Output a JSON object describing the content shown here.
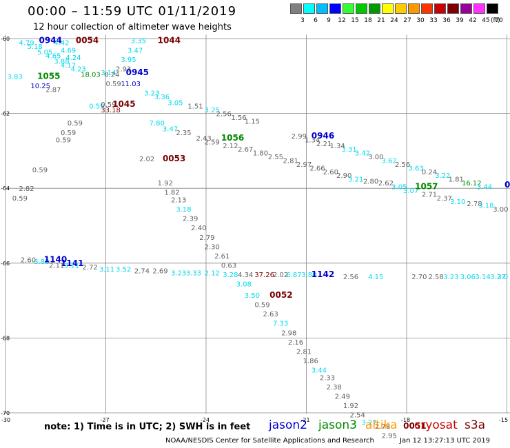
{
  "title": "00:00 – 11:59 UTC 01/11/2019",
  "subtitle": "12 hour collection of altimeter wave heights",
  "scale": {
    "labels": [
      "3",
      "6",
      "9",
      "12",
      "15",
      "18",
      "21",
      "24",
      "27",
      "30",
      "33",
      "36",
      "39",
      "42",
      "45",
      "70"
    ],
    "colors": [
      "#808080",
      "#00ffff",
      "#00bfff",
      "#0000ff",
      "#33ff33",
      "#00c800",
      "#009900",
      "#ffff00",
      "#ffcc00",
      "#ff9900",
      "#ff3300",
      "#cc0000",
      "#800000",
      "#990099",
      "#ff33ff",
      "#000000"
    ],
    "unit": "(ft)"
  },
  "axes": {
    "lat_labels": [
      "-60",
      "-62",
      "-64",
      "-66",
      "-68",
      "-70"
    ],
    "lon_labels": [
      "-30",
      "-27",
      "-24",
      "-21",
      "-18",
      "-15"
    ]
  },
  "colors": {
    "grey": "#606060",
    "cyan": "#00d8ee",
    "blue": "#0000d0",
    "green": "#008800",
    "darkred": "#7a0000"
  },
  "observations": [
    {
      "t": "4.79",
      "c": "cyan",
      "lat": -60.1,
      "lon": -29.6
    },
    {
      "t": "5.18",
      "c": "cyan",
      "lat": -60.2,
      "lon": -29.35
    },
    {
      "t": "0944",
      "c": "blue",
      "lat": -60.05,
      "lon": -29.0,
      "b": 1
    },
    {
      "t": "5.05",
      "c": "cyan",
      "lat": -60.35,
      "lon": -29.05
    },
    {
      "t": "4.42",
      "c": "cyan",
      "lat": -60.1,
      "lon": -28.55
    },
    {
      "t": "4.65",
      "c": "cyan",
      "lat": -60.45,
      "lon": -28.8
    },
    {
      "t": "4.69",
      "c": "cyan",
      "lat": -60.3,
      "lon": -28.35
    },
    {
      "t": "3.88",
      "c": "cyan",
      "lat": -60.6,
      "lon": -28.55
    },
    {
      "t": "4.24",
      "c": "cyan",
      "lat": -60.5,
      "lon": -28.2
    },
    {
      "t": "4.17",
      "c": "cyan",
      "lat": -60.7,
      "lon": -28.35
    },
    {
      "t": "4.23",
      "c": "cyan",
      "lat": -60.8,
      "lon": -28.05
    },
    {
      "t": "0054",
      "c": "darkred",
      "lat": -60.05,
      "lon": -27.9,
      "b": 1
    },
    {
      "t": "3.35",
      "c": "cyan",
      "lat": -60.05,
      "lon": -26.25
    },
    {
      "t": "1044",
      "c": "darkred",
      "lat": -60.05,
      "lon": -25.45,
      "b": 1
    },
    {
      "t": "3.47",
      "c": "cyan",
      "lat": -60.3,
      "lon": -26.35
    },
    {
      "t": "3.95",
      "c": "cyan",
      "lat": -60.55,
      "lon": -26.55
    },
    {
      "t": "2.93",
      "c": "grey",
      "lat": -60.8,
      "lon": -26.7
    },
    {
      "t": "3.83",
      "c": "cyan",
      "lat": -61.0,
      "lon": -29.95
    },
    {
      "t": "1055",
      "c": "green",
      "lat": -61.0,
      "lon": -29.05,
      "b": 1
    },
    {
      "t": "18.03",
      "c": "green",
      "lat": -60.95,
      "lon": -27.75
    },
    {
      "t": "3.14",
      "c": "cyan",
      "lat": -60.9,
      "lon": -27.15
    },
    {
      "t": "0945",
      "c": "blue",
      "lat": -60.9,
      "lon": -26.4,
      "b": 1
    },
    {
      "t": "0.24",
      "c": "grey",
      "lat": -60.95,
      "lon": -27.05
    },
    {
      "t": "10.25",
      "c": "blue",
      "lat": -61.25,
      "lon": -29.25
    },
    {
      "t": "2.87",
      "c": "grey",
      "lat": -61.35,
      "lon": -28.8
    },
    {
      "t": "0.59",
      "c": "grey",
      "lat": -61.2,
      "lon": -27.0
    },
    {
      "t": "11.03",
      "c": "blue",
      "lat": -61.2,
      "lon": -26.55
    },
    {
      "t": "3.23",
      "c": "cyan",
      "lat": -61.45,
      "lon": -25.85
    },
    {
      "t": "3.36",
      "c": "cyan",
      "lat": -61.55,
      "lon": -25.55
    },
    {
      "t": "3.05",
      "c": "cyan",
      "lat": -61.7,
      "lon": -25.15
    },
    {
      "t": "1.51",
      "c": "grey",
      "lat": -61.8,
      "lon": -24.55
    },
    {
      "t": "3.25",
      "c": "cyan",
      "lat": -61.9,
      "lon": -24.05
    },
    {
      "t": "2.56",
      "c": "grey",
      "lat": -62.0,
      "lon": -23.7
    },
    {
      "t": "1.56",
      "c": "grey",
      "lat": -62.1,
      "lon": -23.25
    },
    {
      "t": "1.15",
      "c": "grey",
      "lat": -62.2,
      "lon": -22.85
    },
    {
      "t": "0.59",
      "c": "cyan",
      "lat": -61.8,
      "lon": -27.5
    },
    {
      "t": "0.59",
      "c": "grey",
      "lat": -61.75,
      "lon": -27.15
    },
    {
      "t": "1045",
      "c": "darkred",
      "lat": -61.75,
      "lon": -26.8,
      "b": 1
    },
    {
      "t": "33.18",
      "c": "darkred",
      "lat": -61.9,
      "lon": -27.15
    },
    {
      "t": "0.59",
      "c": "grey",
      "lat": -62.25,
      "lon": -28.15
    },
    {
      "t": "0.59",
      "c": "grey",
      "lat": -62.5,
      "lon": -28.35
    },
    {
      "t": "0.59",
      "c": "grey",
      "lat": -62.7,
      "lon": -28.5
    },
    {
      "t": "7.80",
      "c": "cyan",
      "lat": -62.25,
      "lon": -25.7
    },
    {
      "t": "3.47",
      "c": "cyan",
      "lat": -62.4,
      "lon": -25.3
    },
    {
      "t": "2.35",
      "c": "grey",
      "lat": -62.5,
      "lon": -24.9
    },
    {
      "t": "2.43",
      "c": "grey",
      "lat": -62.65,
      "lon": -24.3
    },
    {
      "t": "2.59",
      "c": "grey",
      "lat": -62.75,
      "lon": -24.05
    },
    {
      "t": "1056",
      "c": "green",
      "lat": -62.65,
      "lon": -23.55,
      "b": 1
    },
    {
      "t": "2.12",
      "c": "grey",
      "lat": -62.85,
      "lon": -23.5
    },
    {
      "t": "2.67",
      "c": "grey",
      "lat": -62.95,
      "lon": -23.05
    },
    {
      "t": "1.80",
      "c": "grey",
      "lat": -63.05,
      "lon": -22.6
    },
    {
      "t": "2.55",
      "c": "grey",
      "lat": -63.15,
      "lon": -22.15
    },
    {
      "t": "2.81",
      "c": "grey",
      "lat": -63.25,
      "lon": -21.7
    },
    {
      "t": "2.97",
      "c": "grey",
      "lat": -63.35,
      "lon": -21.3
    },
    {
      "t": "2.66",
      "c": "grey",
      "lat": -63.45,
      "lon": -20.9
    },
    {
      "t": "2.60",
      "c": "grey",
      "lat": -63.55,
      "lon": -20.5
    },
    {
      "t": "2.90",
      "c": "grey",
      "lat": -63.65,
      "lon": -20.1
    },
    {
      "t": "3.21",
      "c": "cyan",
      "lat": -63.75,
      "lon": -19.75
    },
    {
      "t": "2.80",
      "c": "grey",
      "lat": -63.8,
      "lon": -19.3
    },
    {
      "t": "2.62",
      "c": "grey",
      "lat": -63.85,
      "lon": -18.85
    },
    {
      "t": "3.05",
      "c": "cyan",
      "lat": -63.95,
      "lon": -18.45
    },
    {
      "t": "3.07",
      "c": "cyan",
      "lat": -64.05,
      "lon": -18.1
    },
    {
      "t": "1057",
      "c": "green",
      "lat": -63.95,
      "lon": -17.75,
      "b": 1
    },
    {
      "t": "2.71",
      "c": "grey",
      "lat": -64.15,
      "lon": -17.55
    },
    {
      "t": "2.37",
      "c": "grey",
      "lat": -64.25,
      "lon": -17.1
    },
    {
      "t": "3.10",
      "c": "cyan",
      "lat": -64.35,
      "lon": -16.7
    },
    {
      "t": "2.78",
      "c": "grey",
      "lat": -64.4,
      "lon": -16.2
    },
    {
      "t": "3.18",
      "c": "cyan",
      "lat": -64.45,
      "lon": -15.85
    },
    {
      "t": "3.00",
      "c": "grey",
      "lat": -64.55,
      "lon": -15.3
    },
    {
      "t": "2.99",
      "c": "grey",
      "lat": -62.6,
      "lon": -21.45
    },
    {
      "t": "0946",
      "c": "blue",
      "lat": -62.6,
      "lon": -20.85,
      "b": 1
    },
    {
      "t": "1.34",
      "c": "grey",
      "lat": -62.7,
      "lon": -21.05
    },
    {
      "t": "2.21",
      "c": "grey",
      "lat": -62.8,
      "lon": -20.7
    },
    {
      "t": "1.34",
      "c": "grey",
      "lat": -62.85,
      "lon": -20.3
    },
    {
      "t": "3.31",
      "c": "cyan",
      "lat": -62.95,
      "lon": -19.95
    },
    {
      "t": "3.42",
      "c": "cyan",
      "lat": -63.05,
      "lon": -19.55
    },
    {
      "t": "3.00",
      "c": "grey",
      "lat": -63.15,
      "lon": -19.15
    },
    {
      "t": "3.62",
      "c": "cyan",
      "lat": -63.25,
      "lon": -18.75
    },
    {
      "t": "2.56",
      "c": "grey",
      "lat": -63.35,
      "lon": -18.35
    },
    {
      "t": "3.63",
      "c": "cyan",
      "lat": -63.45,
      "lon": -17.95
    },
    {
      "t": "0.24",
      "c": "grey",
      "lat": -63.55,
      "lon": -17.55
    },
    {
      "t": "3.22",
      "c": "cyan",
      "lat": -63.65,
      "lon": -17.15
    },
    {
      "t": "1.81",
      "c": "grey",
      "lat": -63.75,
      "lon": -16.75
    },
    {
      "t": "16.12",
      "c": "green",
      "lat": -63.85,
      "lon": -16.35
    },
    {
      "t": "3.44",
      "c": "cyan",
      "lat": -63.95,
      "lon": -15.9
    },
    {
      "t": "0",
      "c": "blue",
      "lat": -63.9,
      "lon": -15.05,
      "b": 1
    },
    {
      "t": "2.02",
      "c": "grey",
      "lat": -63.2,
      "lon": -26.0
    },
    {
      "t": "0053",
      "c": "darkred",
      "lat": -63.2,
      "lon": -25.3,
      "b": 1
    },
    {
      "t": "0.59",
      "c": "grey",
      "lat": -63.5,
      "lon": -29.2
    },
    {
      "t": "1.92",
      "c": "grey",
      "lat": -63.85,
      "lon": -25.45
    },
    {
      "t": "1.82",
      "c": "grey",
      "lat": -64.1,
      "lon": -25.25
    },
    {
      "t": "2.13",
      "c": "grey",
      "lat": -64.3,
      "lon": -25.05
    },
    {
      "t": "3.18",
      "c": "cyan",
      "lat": -64.55,
      "lon": -24.9
    },
    {
      "t": "2.39",
      "c": "grey",
      "lat": -64.8,
      "lon": -24.7
    },
    {
      "t": "2.40",
      "c": "grey",
      "lat": -65.05,
      "lon": -24.45
    },
    {
      "t": "2.79",
      "c": "grey",
      "lat": -65.3,
      "lon": -24.2
    },
    {
      "t": "2.30",
      "c": "grey",
      "lat": -65.55,
      "lon": -24.05
    },
    {
      "t": "2.61",
      "c": "grey",
      "lat": -65.8,
      "lon": -23.75
    },
    {
      "t": "0.63",
      "c": "grey",
      "lat": -66.05,
      "lon": -23.55
    },
    {
      "t": "2.82",
      "c": "grey",
      "lat": -64.0,
      "lon": -29.6
    },
    {
      "t": "0.59",
      "c": "grey",
      "lat": -64.25,
      "lon": -29.8
    },
    {
      "t": "2.60",
      "c": "grey",
      "lat": -65.9,
      "lon": -29.55
    },
    {
      "t": "3.88",
      "c": "cyan",
      "lat": -65.95,
      "lon": -29.15
    },
    {
      "t": "1140",
      "c": "blue",
      "lat": -65.9,
      "lon": -28.85,
      "b": 1
    },
    {
      "t": "1141",
      "c": "blue",
      "lat": -66.0,
      "lon": -28.35,
      "b": 1
    },
    {
      "t": "2.11",
      "c": "grey",
      "lat": -66.05,
      "lon": -28.7
    },
    {
      "t": "3.11",
      "c": "cyan",
      "lat": -66.05,
      "lon": -28.25
    },
    {
      "t": "2.72",
      "c": "grey",
      "lat": -66.1,
      "lon": -27.7
    },
    {
      "t": "3.11",
      "c": "cyan",
      "lat": -66.15,
      "lon": -27.2
    },
    {
      "t": "3.52",
      "c": "cyan",
      "lat": -66.15,
      "lon": -26.7
    },
    {
      "t": "2.74",
      "c": "grey",
      "lat": -66.2,
      "lon": -26.15
    },
    {
      "t": "2.69",
      "c": "grey",
      "lat": -66.2,
      "lon": -25.6
    },
    {
      "t": "3.23",
      "c": "cyan",
      "lat": -66.25,
      "lon": -25.05
    },
    {
      "t": "3.33",
      "c": "cyan",
      "lat": -66.25,
      "lon": -24.6
    },
    {
      "t": "2.12",
      "c": "cyan",
      "lat": -66.25,
      "lon": -24.05
    },
    {
      "t": "3.28",
      "c": "cyan",
      "lat": -66.3,
      "lon": -23.5
    },
    {
      "t": "4.34",
      "c": "grey",
      "lat": -66.3,
      "lon": -23.05
    },
    {
      "t": "37.26",
      "c": "darkred",
      "lat": -66.3,
      "lon": -22.55
    },
    {
      "t": "2.02",
      "c": "grey",
      "lat": -66.3,
      "lon": -22.0
    },
    {
      "t": "6.87",
      "c": "cyan",
      "lat": -66.3,
      "lon": -21.6
    },
    {
      "t": "3.80",
      "c": "cyan",
      "lat": -66.3,
      "lon": -21.15
    },
    {
      "t": "1142",
      "c": "blue",
      "lat": -66.3,
      "lon": -20.85,
      "b": 1
    },
    {
      "t": "2.56",
      "c": "grey",
      "lat": -66.35,
      "lon": -19.9
    },
    {
      "t": "4.15",
      "c": "cyan",
      "lat": -66.35,
      "lon": -19.15
    },
    {
      "t": "2.70",
      "c": "grey",
      "lat": -66.35,
      "lon": -17.85
    },
    {
      "t": "2.58",
      "c": "grey",
      "lat": -66.35,
      "lon": -17.35
    },
    {
      "t": "3.23",
      "c": "cyan",
      "lat": -66.35,
      "lon": -16.9
    },
    {
      "t": "3.06",
      "c": "cyan",
      "lat": -66.35,
      "lon": -16.4
    },
    {
      "t": "3.14",
      "c": "cyan",
      "lat": -66.35,
      "lon": -15.95
    },
    {
      "t": "3.27",
      "c": "cyan",
      "lat": -66.35,
      "lon": -15.5
    },
    {
      "t": "3.0",
      "c": "cyan",
      "lat": -66.35,
      "lon": -15.1
    },
    {
      "t": "3.08",
      "c": "cyan",
      "lat": -66.55,
      "lon": -23.1
    },
    {
      "t": "3.50",
      "c": "cyan",
      "lat": -66.85,
      "lon": -22.85
    },
    {
      "t": "0052",
      "c": "darkred",
      "lat": -66.85,
      "lon": -22.1,
      "b": 1
    },
    {
      "t": "0.59",
      "c": "grey",
      "lat": -67.1,
      "lon": -22.55
    },
    {
      "t": "2.63",
      "c": "grey",
      "lat": -67.35,
      "lon": -22.3
    },
    {
      "t": "7.33",
      "c": "cyan",
      "lat": -67.6,
      "lon": -22.0
    },
    {
      "t": "2.98",
      "c": "grey",
      "lat": -67.85,
      "lon": -21.75
    },
    {
      "t": "2.16",
      "c": "grey",
      "lat": -68.1,
      "lon": -21.55
    },
    {
      "t": "2.81",
      "c": "grey",
      "lat": -68.35,
      "lon": -21.3
    },
    {
      "t": "1.86",
      "c": "grey",
      "lat": -68.6,
      "lon": -21.1
    },
    {
      "t": "3.44",
      "c": "cyan",
      "lat": -68.85,
      "lon": -20.85
    },
    {
      "t": "2.33",
      "c": "grey",
      "lat": -69.05,
      "lon": -20.6
    },
    {
      "t": "2.38",
      "c": "grey",
      "lat": -69.3,
      "lon": -20.4
    },
    {
      "t": "2.49",
      "c": "grey",
      "lat": -69.55,
      "lon": -20.15
    },
    {
      "t": "1.92",
      "c": "grey",
      "lat": -69.8,
      "lon": -19.9
    },
    {
      "t": "2.54",
      "c": "grey",
      "lat": -70.05,
      "lon": -19.7
    },
    {
      "t": "3.27",
      "c": "cyan",
      "lat": -70.25,
      "lon": -19.35
    },
    {
      "t": "2.78",
      "c": "grey",
      "lat": -70.35,
      "lon": -18.95
    },
    {
      "t": "0051",
      "c": "darkred",
      "lat": -70.35,
      "lon": -18.1,
      "b": 1
    },
    {
      "t": "2.95",
      "c": "grey",
      "lat": -70.6,
      "lon": -18.75
    }
  ],
  "note": "note:  1) Time is in UTC; 2) SWH is in feet",
  "satellites": [
    {
      "name": "jason2",
      "color": "#0000d0"
    },
    {
      "name": "jason3",
      "color": "#008800"
    },
    {
      "name": "altika",
      "color": "#ff9900"
    },
    {
      "name": "cryosat",
      "color": "#cc0000"
    },
    {
      "name": "s3a",
      "color": "#7a0000"
    }
  ],
  "footer": "NOAA/NESDIS Center for Satellite Applications and Research",
  "timestamp": "Jan 12 13:27:13 UTC 2019"
}
